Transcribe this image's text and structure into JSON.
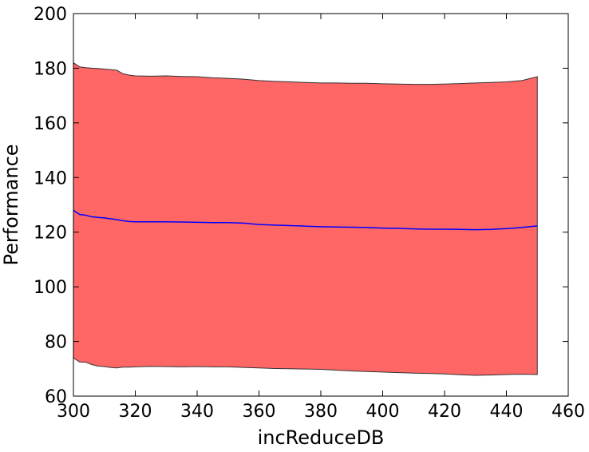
{
  "chart_data": {
    "type": "area",
    "xlabel": "incReduceDB",
    "ylabel": "Performance",
    "xlim": [
      300,
      460
    ],
    "ylim": [
      60,
      200
    ],
    "xticks": [
      300,
      320,
      340,
      360,
      380,
      400,
      420,
      440,
      460
    ],
    "yticks": [
      60,
      80,
      100,
      120,
      140,
      160,
      180,
      200
    ],
    "grid": false,
    "x": [
      300,
      302,
      304,
      306,
      308,
      310,
      312,
      314,
      316,
      318,
      320,
      325,
      330,
      335,
      340,
      345,
      350,
      355,
      360,
      365,
      370,
      375,
      380,
      385,
      390,
      395,
      400,
      405,
      410,
      415,
      420,
      425,
      430,
      435,
      440,
      445,
      450
    ],
    "series": [
      {
        "role": "mean",
        "color": "#0000ff",
        "values": [
          128.0,
          126.5,
          126.2,
          125.6,
          125.4,
          125.2,
          124.9,
          124.6,
          124.2,
          123.9,
          123.8,
          123.8,
          123.8,
          123.7,
          123.6,
          123.5,
          123.5,
          123.3,
          122.8,
          122.6,
          122.4,
          122.2,
          122.0,
          121.9,
          121.8,
          121.7,
          121.5,
          121.4,
          121.2,
          121.1,
          121.1,
          121.0,
          120.9,
          121.0,
          121.3,
          121.7,
          122.3
        ]
      },
      {
        "role": "band",
        "color": "#ff6666",
        "upper": [
          182.0,
          180.5,
          180.2,
          180.0,
          179.9,
          179.7,
          179.5,
          179.3,
          178.0,
          177.5,
          177.2,
          177.1,
          177.2,
          177.0,
          176.9,
          176.5,
          176.3,
          176.0,
          175.5,
          175.2,
          175.0,
          174.8,
          174.6,
          174.6,
          174.5,
          174.5,
          174.3,
          174.2,
          174.1,
          174.1,
          174.2,
          174.4,
          174.6,
          174.8,
          175.0,
          175.5,
          176.9
        ],
        "lower": [
          74.0,
          72.5,
          72.4,
          71.5,
          71.0,
          70.8,
          70.5,
          70.3,
          70.6,
          70.6,
          70.7,
          70.9,
          70.8,
          70.7,
          70.8,
          70.7,
          70.7,
          70.5,
          70.3,
          70.1,
          70.0,
          69.9,
          69.8,
          69.5,
          69.2,
          69.0,
          68.8,
          68.6,
          68.4,
          68.3,
          68.1,
          67.8,
          67.6,
          67.7,
          67.9,
          68.0,
          67.9
        ]
      }
    ]
  }
}
